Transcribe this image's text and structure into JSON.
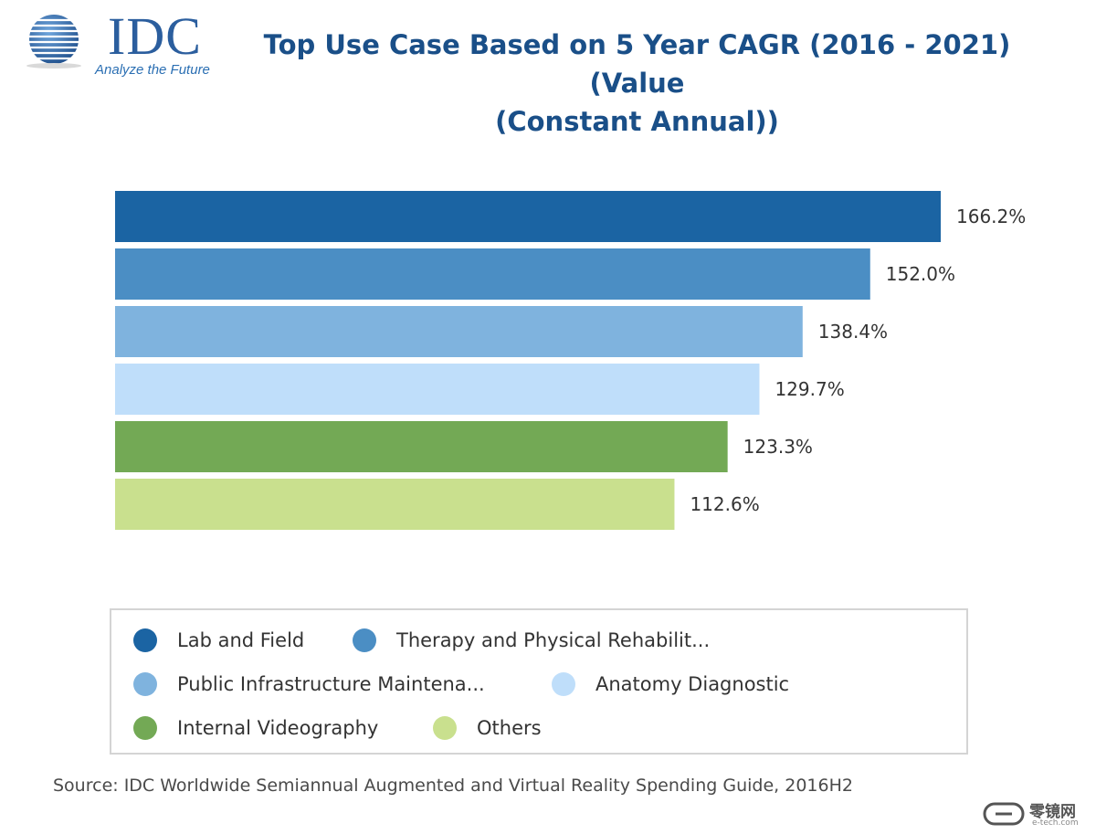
{
  "logo": {
    "wordmark": "IDC",
    "tagline": "Analyze the Future",
    "color": "#2b5e9e"
  },
  "chart_data": {
    "type": "bar",
    "orientation": "horizontal",
    "title": "Top Use Case Based on 5 Year CAGR (2016 - 2021) (Value (Constant Annual))",
    "title_lines": [
      "Top Use Case Based on 5 Year CAGR (2016 - 2021) (Value",
      "(Constant Annual))"
    ],
    "categories": [
      "Lab and Field",
      "Therapy and Physical Rehabilit...",
      "Public Infrastructure Maintena...",
      "Anatomy Diagnostic",
      "Internal Videography",
      "Others"
    ],
    "values": [
      166.2,
      152.0,
      138.4,
      129.7,
      123.3,
      112.6
    ],
    "value_labels": [
      "166.2%",
      "152.0%",
      "138.4%",
      "129.7%",
      "123.3%",
      "112.6%"
    ],
    "colors": [
      "#1b64a3",
      "#4b8ec4",
      "#7fb3de",
      "#bfdefa",
      "#73a955",
      "#c9e08e"
    ],
    "xlim": [
      0,
      166.2
    ],
    "grid": false,
    "legend_position": "bottom"
  },
  "source": "Source: IDC Worldwide Semiannual Augmented and Virtual Reality Spending Guide, 2016H2",
  "watermark": {
    "text_cn": "零镜网",
    "text_en": "e-tech.com"
  }
}
